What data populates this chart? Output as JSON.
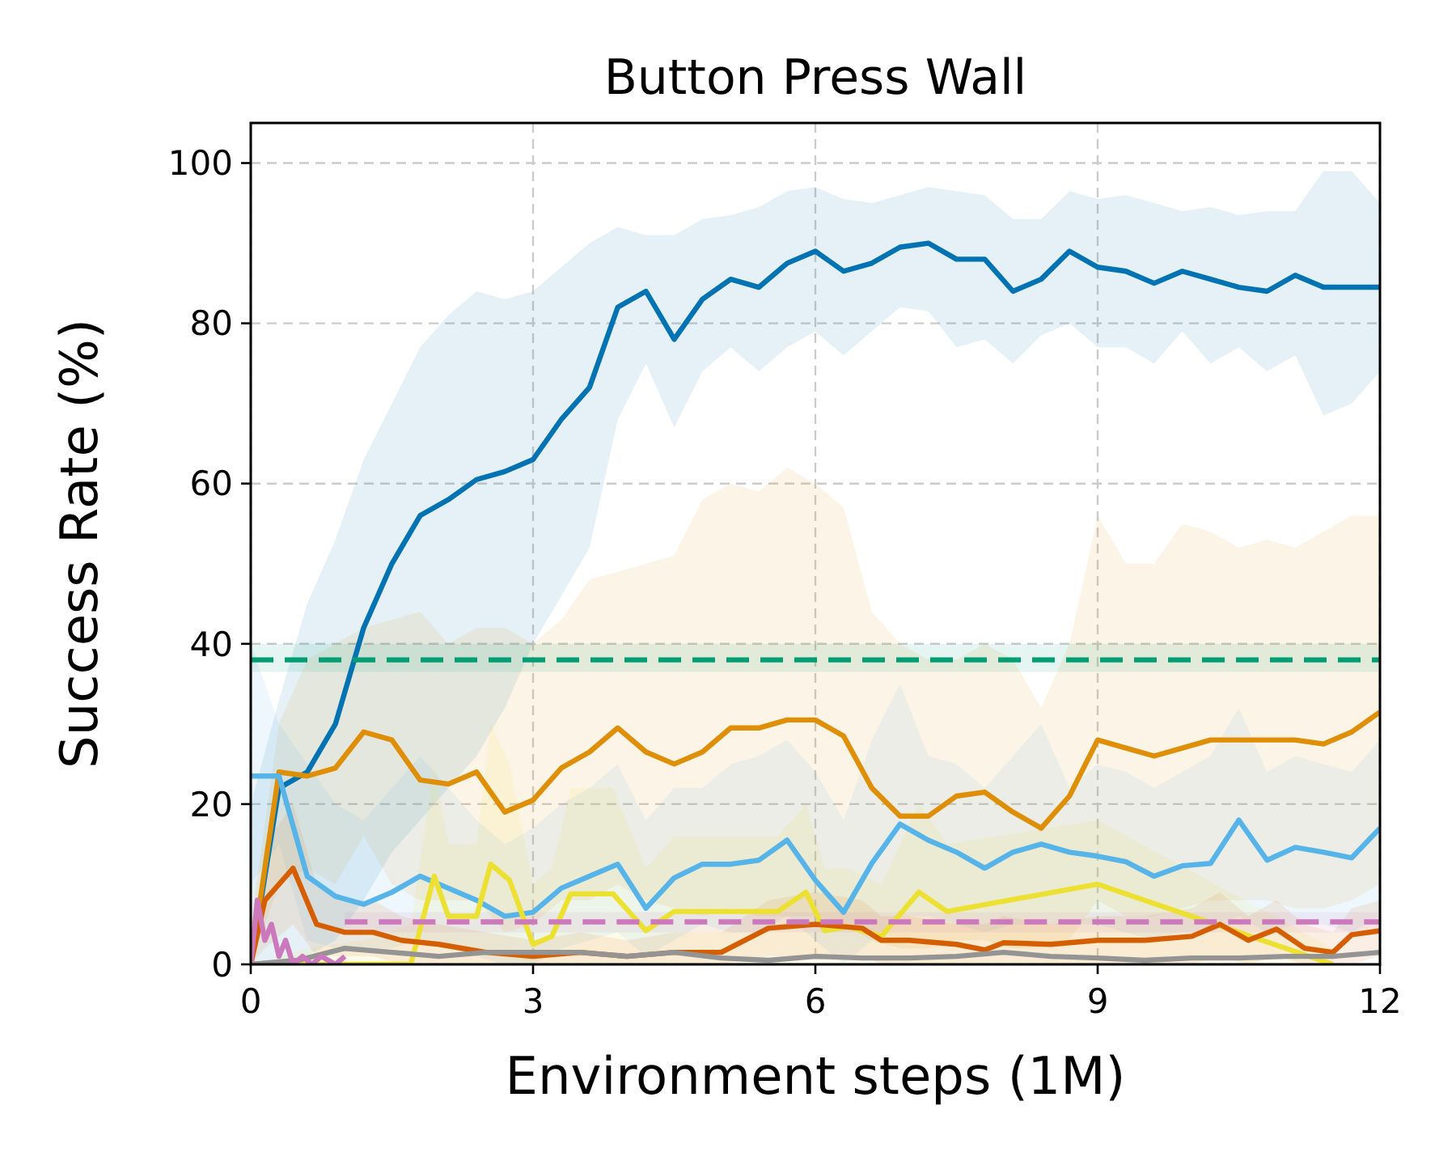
{
  "chart_data": {
    "type": "line",
    "title": "Button Press Wall",
    "xlabel": "Environment steps (1M)",
    "ylabel": "Success Rate (%)",
    "xlim": [
      0,
      12
    ],
    "xticks": [
      0,
      3,
      6,
      9,
      12
    ],
    "ylim": [
      0,
      105
    ],
    "yticks": [
      0,
      20,
      40,
      60,
      80,
      100
    ],
    "grid": true,
    "marker": "none",
    "line_style": "solid",
    "x": [
      0,
      0.3,
      0.6,
      0.9,
      1.2,
      1.5,
      1.8,
      2.1,
      2.4,
      2.7,
      3.0,
      3.3,
      3.6,
      3.9,
      4.2,
      4.5,
      4.8,
      5.1,
      5.4,
      5.7,
      6.0,
      6.3,
      6.6,
      6.9,
      7.2,
      7.5,
      7.8,
      8.1,
      8.4,
      8.7,
      9.0,
      9.3,
      9.6,
      9.9,
      10.2,
      10.5,
      10.8,
      11.1,
      11.4,
      11.7,
      12
    ],
    "series": [
      {
        "color": "#0173b2",
        "values": [
          0,
          22,
          24,
          30,
          42,
          50,
          56,
          58,
          60.5,
          61.5,
          63,
          68,
          72,
          82,
          84,
          78,
          83,
          85.5,
          84.5,
          87.5,
          89,
          86.5,
          87.5,
          89.5,
          90,
          88,
          88,
          84,
          85.5,
          89,
          87,
          86.5,
          85,
          86.5,
          85.5,
          84.5,
          84,
          86,
          84.5,
          84.5,
          84.5
        ],
        "upper": [
          20,
          33,
          45,
          53,
          63,
          70,
          77,
          81,
          84,
          83,
          84,
          87,
          90,
          92,
          91,
          91,
          93,
          93.5,
          94.5,
          96.5,
          97,
          95.5,
          95,
          96,
          97,
          96.5,
          96,
          93,
          93,
          96.5,
          95.5,
          96,
          95,
          94,
          94.5,
          93.5,
          94,
          94,
          99,
          99,
          95
        ],
        "lower": [
          0,
          0,
          1,
          3,
          8,
          14,
          18,
          22,
          26,
          32,
          40,
          46,
          52,
          68,
          75,
          67,
          74,
          77,
          74,
          77,
          79,
          76,
          79,
          82,
          81.5,
          77,
          78,
          75,
          78.5,
          80,
          77,
          77,
          75,
          79,
          75,
          77,
          74,
          76,
          68.5,
          70,
          74
        ]
      },
      {
        "color": "#de8f05",
        "values": [
          0,
          24,
          23.5,
          24.5,
          29,
          28,
          23,
          22.5,
          24,
          19,
          20.5,
          24.5,
          26.5,
          29.5,
          26.5,
          25,
          26.5,
          29.5,
          29.5,
          30.5,
          30.5,
          28.5,
          22,
          18.5,
          18.5,
          21,
          21.5,
          19,
          17,
          21,
          28,
          27,
          26,
          27,
          28,
          28,
          28,
          28,
          27.5,
          29,
          31.5
        ],
        "upper": [
          5,
          30,
          38,
          40,
          42,
          43,
          44,
          40,
          42,
          42,
          40,
          43,
          48,
          49,
          50,
          51,
          58,
          60,
          59,
          62,
          60,
          57,
          44,
          40,
          38,
          38,
          40,
          38,
          32,
          40,
          56,
          50,
          50,
          55,
          54,
          52,
          53,
          52,
          54,
          56,
          56
        ],
        "lower": [
          0,
          10,
          12,
          10,
          16,
          10,
          8,
          8,
          8,
          4,
          5,
          8,
          8,
          10,
          8,
          7,
          6,
          7,
          6,
          6,
          6,
          5,
          3,
          2,
          2,
          3,
          3,
          2,
          2,
          3,
          8,
          6,
          6,
          7,
          8,
          8,
          8,
          7,
          7,
          8,
          10
        ]
      },
      {
        "color": "#56b4e9",
        "values": [
          23.5,
          23.5,
          11,
          8.5,
          7.5,
          9,
          11,
          9.5,
          8,
          6,
          6.5,
          9.5,
          11,
          12.5,
          7,
          10.8,
          12.5,
          12.5,
          13,
          15.5,
          10.5,
          6.5,
          12.6,
          17.5,
          15.5,
          14,
          12,
          14,
          15,
          14,
          13.5,
          12.8,
          11,
          12.3,
          12.6,
          18,
          13,
          14.6,
          14,
          13.3,
          17
        ],
        "upper": [
          40,
          30,
          25,
          20,
          18,
          22,
          26,
          22,
          18,
          15,
          17,
          20,
          22,
          25,
          18,
          22,
          22,
          25,
          26,
          28,
          24,
          18,
          28,
          35,
          26,
          25,
          22,
          26,
          30,
          22,
          25,
          24,
          22,
          24,
          26,
          32,
          24,
          26,
          25,
          24,
          28
        ],
        "lower": [
          10,
          15,
          3,
          2,
          2,
          2,
          3,
          2,
          1,
          0,
          0,
          2,
          3,
          4,
          1,
          3,
          5,
          4,
          4,
          6,
          3,
          0,
          3,
          6,
          6,
          5,
          4,
          5,
          5,
          5,
          5,
          4,
          3,
          4,
          4,
          6,
          4,
          5,
          5,
          4,
          6
        ]
      },
      {
        "color": "#ece133",
        "x": [
          0,
          0.6,
          1.2,
          1.7,
          1.95,
          2.1,
          2.4,
          2.55,
          2.75,
          3.0,
          3.2,
          3.4,
          3.85,
          4.2,
          4.5,
          5.6,
          5.9,
          6.1,
          6.35,
          6.7,
          7.1,
          7.4,
          9.0,
          11.5
        ],
        "values": [
          0,
          0,
          0,
          0,
          11,
          6,
          6,
          12.5,
          10.5,
          2.5,
          3.5,
          8.8,
          8.8,
          4.2,
          6.6,
          6.6,
          9,
          4.2,
          4.7,
          3.5,
          9,
          6.6,
          10,
          0
        ],
        "upper": [
          0,
          2,
          3,
          5,
          25,
          15,
          15,
          30,
          25,
          10,
          12,
          22,
          22,
          12,
          16,
          16,
          20,
          12,
          12,
          10,
          20,
          15,
          18,
          2
        ],
        "lower": [
          0,
          0,
          0,
          0,
          0,
          0,
          0,
          0,
          0,
          0,
          0,
          0,
          0,
          0,
          0,
          0,
          0,
          0,
          0,
          0,
          0,
          0,
          0,
          0
        ]
      },
      {
        "color": "#d55e00",
        "x": [
          0,
          0.15,
          0.45,
          0.7,
          1.0,
          1.3,
          1.6,
          2.0,
          2.5,
          3.0,
          3.5,
          4.0,
          4.5,
          5.0,
          5.5,
          6.0,
          6.5,
          6.7,
          7.0,
          7.5,
          7.8,
          8.0,
          8.5,
          9.0,
          9.5,
          10.0,
          10.3,
          10.6,
          10.9,
          11.2,
          11.5,
          11.7,
          12
        ],
        "values": [
          0,
          8,
          12,
          5,
          4,
          4,
          3,
          2.5,
          1.5,
          1,
          1.5,
          1,
          1.5,
          1.5,
          4.5,
          5,
          4.5,
          3,
          3,
          2.5,
          1.8,
          2.7,
          2.5,
          3,
          3,
          3.5,
          5,
          3,
          4.4,
          2,
          1.5,
          3.7,
          4.2
        ],
        "upper": [
          0,
          15,
          20,
          10,
          8,
          8,
          6,
          5,
          4,
          3,
          4,
          3,
          4,
          4,
          8,
          9,
          8,
          6,
          6,
          5,
          5,
          6,
          5,
          6,
          6,
          7,
          9,
          6,
          8,
          5,
          4,
          7,
          8
        ],
        "lower": [
          0,
          2,
          5,
          1,
          1,
          1,
          0,
          0,
          0,
          0,
          0,
          0,
          0,
          0,
          1,
          1,
          1,
          0,
          0,
          0,
          0,
          0,
          0,
          0,
          0,
          0,
          1,
          0,
          1,
          0,
          0,
          0,
          1
        ]
      },
      {
        "color": "#949494",
        "x": [
          0,
          0.5,
          1.0,
          1.5,
          2.0,
          2.5,
          3.0,
          3.5,
          4.0,
          4.5,
          5.0,
          5.5,
          6.0,
          6.5,
          7.0,
          7.5,
          8.0,
          8.5,
          9.0,
          9.5,
          10.0,
          10.5,
          11.0,
          11.5,
          12
        ],
        "values": [
          0,
          0.5,
          2,
          1.5,
          1,
          1.5,
          1.5,
          1.5,
          1,
          1.5,
          0.8,
          0.5,
          1,
          0.8,
          0.8,
          1,
          1.5,
          1,
          0.8,
          0.5,
          0.8,
          0.8,
          1,
          1,
          1.5
        ]
      },
      {
        "color": "#cc78bc",
        "x": [
          0,
          0.07,
          0.15,
          0.22,
          0.3,
          0.37,
          0.45,
          0.55,
          0.65,
          0.75,
          0.9,
          1.0
        ],
        "values": [
          0,
          8,
          3,
          5,
          1,
          3,
          0,
          1,
          0,
          1,
          0,
          1
        ]
      },
      {
        "color": "#cc78bc",
        "line_style": "dashed",
        "x": [
          1,
          12
        ],
        "values": [
          5.3,
          5.3
        ],
        "lower": [
          4,
          4
        ],
        "upper": [
          6.5,
          6.5
        ]
      },
      {
        "color": "#029e73",
        "line_style": "dashed",
        "x": [
          0,
          12
        ],
        "values": [
          38,
          38
        ],
        "lower": [
          36.5,
          36.5
        ],
        "upper": [
          40,
          40
        ]
      }
    ]
  }
}
